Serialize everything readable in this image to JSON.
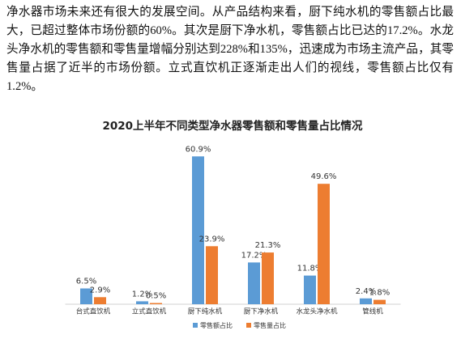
{
  "paragraph": "净水器市场未来还有很大的发展空间。从产品结构来看，厨下纯水机的零售额占比最大，已超过整体市场份额的60%。其次是厨下净水机，零售额占比已达的17.2%。水龙头净水机的零售额和零售量增幅分别达到228%和135%，迅速成为市场主流产品，其零售量占据了近半的市场份额。立式直饮机正逐渐走出人们的视线，零售额占比仅有1.2%。",
  "chart_data": {
    "type": "bar",
    "title": "2020上半年不同类型净水器零售额和零售量占比情况",
    "categories": [
      "台式直饮机",
      "立式直饮机",
      "厨下纯水机",
      "厨下净水机",
      "水龙头净水机",
      "管线机"
    ],
    "series": [
      {
        "name": "零售额占比",
        "color": "#5b9bd5",
        "values": [
          6.5,
          1.2,
          60.9,
          17.2,
          11.8,
          2.4
        ],
        "value_labels": [
          "6.5%",
          "1.2%",
          "60.9%",
          "17.2%",
          "11.8%",
          "2.4%"
        ]
      },
      {
        "name": "零售量占比",
        "color": "#ed7d31",
        "values": [
          2.9,
          0.5,
          23.9,
          21.3,
          49.6,
          1.8
        ],
        "value_labels": [
          "2.9%",
          "0.5%",
          "23.9%",
          "21.3%",
          "49.6%",
          "1.8%"
        ]
      }
    ],
    "legend": "bottom"
  }
}
